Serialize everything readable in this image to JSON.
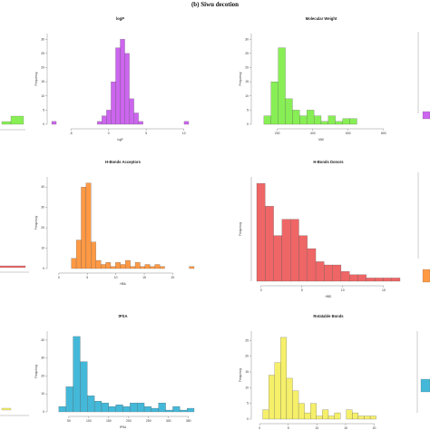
{
  "page": {
    "panel_title": "(b) Siwu decotion"
  },
  "chart_data": [
    {
      "type": "bar",
      "title": "logP",
      "xlabel": "logP",
      "ylabel": "Frequency",
      "color": "#cc66ee",
      "x_ticks": [
        "-5",
        "0",
        "5",
        "10"
      ],
      "y_ticks": [
        "0",
        "5",
        "10",
        "15",
        "20",
        "25",
        "30"
      ],
      "ylim": [
        0,
        32
      ],
      "values": [
        1,
        0,
        0,
        0,
        0,
        0,
        0,
        0,
        0,
        0,
        1,
        3,
        5,
        15,
        27,
        30,
        25,
        9,
        4,
        1,
        0,
        0,
        0,
        0,
        0,
        0,
        0,
        0,
        0,
        1
      ]
    },
    {
      "type": "bar",
      "title": "Molecular Weight",
      "xlabel": "MW",
      "ylabel": "Frequency",
      "color": "#88ee55",
      "x_ticks": [
        "200",
        "400",
        "600",
        "800"
      ],
      "y_ticks": [
        "0",
        "5",
        "10",
        "15",
        "20",
        "25",
        "30"
      ],
      "ylim": [
        0,
        32
      ],
      "values": [
        0,
        3,
        15,
        27,
        9,
        5,
        3,
        5,
        3,
        1,
        3,
        1,
        2,
        2,
        0,
        0,
        0,
        0
      ]
    },
    {
      "type": "bar",
      "title": "H-Bonds Acceptors",
      "xlabel": "HBA",
      "ylabel": "Frequency",
      "color": "#ff9944",
      "x_ticks": [
        "0",
        "5",
        "10",
        "15",
        "20"
      ],
      "y_ticks": [
        "0",
        "10",
        "20",
        "30",
        "40"
      ],
      "ylim": [
        0,
        45
      ],
      "values": [
        0,
        0,
        0,
        0,
        5,
        14,
        40,
        42,
        13,
        4,
        2,
        3,
        1,
        3,
        2,
        4,
        1,
        3,
        1,
        2,
        1,
        2,
        1,
        0,
        0,
        0,
        0,
        0,
        1
      ]
    },
    {
      "type": "bar",
      "title": "H-Bonds Donors",
      "xlabel": "HBD",
      "ylabel": "Frequency",
      "color": "#ee6666",
      "x_ticks": [
        "0",
        "5",
        "10",
        "15"
      ],
      "y_ticks": [],
      "ylim": [
        0,
        32
      ],
      "values": [
        30,
        23,
        14,
        19,
        19,
        14,
        10,
        6,
        5,
        5,
        3,
        2,
        2,
        1,
        1,
        1,
        1
      ]
    },
    {
      "type": "bar",
      "title": "tPSA",
      "xlabel": "tPSA",
      "ylabel": "Frequency",
      "color": "#44b8d8",
      "x_ticks": [
        "50",
        "100",
        "150",
        "200",
        "250",
        "300",
        "350"
      ],
      "y_ticks": [
        "0",
        "10",
        "20",
        "30",
        "40"
      ],
      "ylim": [
        0,
        45
      ],
      "values": [
        0,
        3,
        14,
        42,
        28,
        9,
        6,
        5,
        3,
        4,
        3,
        5,
        5,
        3,
        2,
        5,
        1,
        3,
        1,
        2
      ]
    },
    {
      "type": "bar",
      "title": "Rotatable Bonds",
      "xlabel": "Rotatable",
      "ylabel": "Frequency",
      "color": "#f5ef6a",
      "x_ticks": [
        "0",
        "5",
        "10",
        "15",
        "20"
      ],
      "y_ticks": [
        "0",
        "5",
        "10",
        "15",
        "20",
        "25"
      ],
      "ylim": [
        0,
        28
      ],
      "values": [
        0,
        3,
        14,
        18,
        26,
        13,
        9,
        5,
        2,
        5,
        1,
        3,
        1,
        2,
        0,
        3,
        2,
        1,
        1,
        1,
        0,
        0,
        0,
        0
      ]
    }
  ]
}
